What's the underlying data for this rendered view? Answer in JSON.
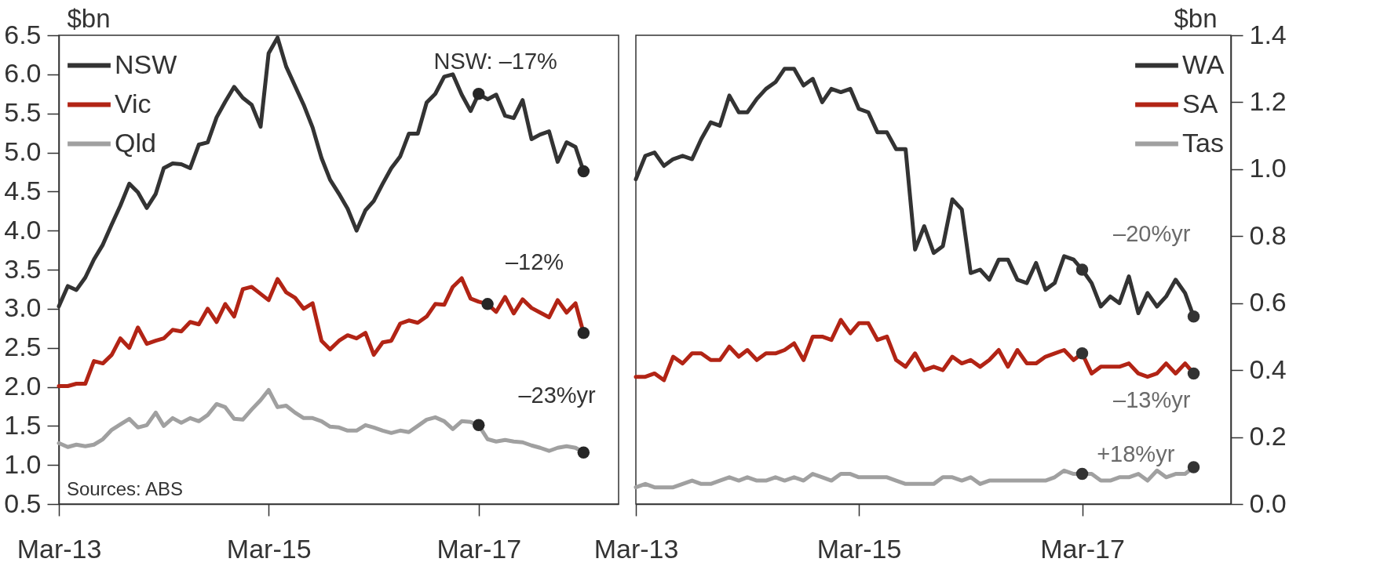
{
  "chart_data": [
    {
      "type": "line",
      "ylabel": "$bn",
      "legend": "top left",
      "grid": false,
      "marker": "none",
      "line_style": "solid",
      "x": [
        "2013-03",
        "2013-04",
        "2013-05",
        "2013-06",
        "2013-07",
        "2013-08",
        "2013-09",
        "2013-10",
        "2013-11",
        "2013-12",
        "2014-01",
        "2014-02",
        "2014-03",
        "2014-04",
        "2014-05",
        "2014-06",
        "2014-07",
        "2014-08",
        "2014-09",
        "2014-10",
        "2014-11",
        "2014-12",
        "2015-01",
        "2015-02",
        "2015-03",
        "2015-04",
        "2015-05",
        "2015-06",
        "2015-07",
        "2015-08",
        "2015-09",
        "2015-10",
        "2015-11",
        "2015-12",
        "2016-01",
        "2016-02",
        "2016-03",
        "2016-04",
        "2016-05",
        "2016-06",
        "2016-07",
        "2016-08",
        "2016-09",
        "2016-10",
        "2016-11",
        "2016-12",
        "2017-01",
        "2017-02",
        "2017-03",
        "2017-04",
        "2017-05",
        "2017-06",
        "2017-07",
        "2017-08",
        "2017-09",
        "2017-10",
        "2017-11",
        "2017-12",
        "2018-01",
        "2018-02",
        "2018-03"
      ],
      "series": [
        {
          "name": "NSW",
          "color": "#333333",
          "values": [
            3.03,
            3.29,
            3.24,
            3.4,
            3.63,
            3.82,
            4.08,
            4.32,
            4.6,
            4.49,
            4.29,
            4.47,
            4.8,
            4.86,
            4.85,
            4.8,
            5.1,
            5.13,
            5.45,
            5.65,
            5.84,
            5.7,
            5.61,
            5.33,
            6.27,
            6.47,
            6.1,
            5.85,
            5.61,
            5.32,
            4.93,
            4.65,
            4.47,
            4.28,
            4.0,
            4.26,
            4.38,
            4.6,
            4.8,
            4.95,
            5.24,
            5.24,
            5.64,
            5.75,
            5.97,
            6.0,
            5.74,
            5.53,
            5.75,
            5.68,
            5.74,
            5.47,
            5.44,
            5.67,
            5.17,
            5.23,
            5.27,
            4.88,
            5.13,
            5.07,
            4.76
          ]
        },
        {
          "name": "Vic",
          "color": "#b22415",
          "values": [
            2.01,
            2.01,
            2.04,
            2.04,
            2.33,
            2.3,
            2.41,
            2.62,
            2.5,
            2.76,
            2.55,
            2.59,
            2.62,
            2.73,
            2.71,
            2.83,
            2.8,
            3.0,
            2.83,
            3.06,
            2.9,
            3.25,
            3.28,
            3.19,
            3.11,
            3.38,
            3.21,
            3.14,
            3.0,
            3.07,
            2.59,
            2.48,
            2.59,
            2.66,
            2.62,
            2.69,
            2.41,
            2.57,
            2.59,
            2.81,
            2.85,
            2.82,
            2.9,
            3.06,
            3.05,
            3.28,
            3.39,
            3.13,
            3.09,
            3.06,
            2.96,
            3.15,
            2.94,
            3.12,
            3.01,
            2.95,
            2.89,
            3.11,
            2.95,
            3.07,
            2.69
          ]
        },
        {
          "name": "Qld",
          "color": "#a0a0a0",
          "values": [
            1.28,
            1.23,
            1.26,
            1.24,
            1.26,
            1.33,
            1.45,
            1.52,
            1.59,
            1.48,
            1.51,
            1.67,
            1.5,
            1.6,
            1.54,
            1.6,
            1.56,
            1.64,
            1.78,
            1.74,
            1.59,
            1.58,
            1.71,
            1.83,
            1.96,
            1.74,
            1.76,
            1.67,
            1.6,
            1.6,
            1.56,
            1.49,
            1.48,
            1.44,
            1.44,
            1.51,
            1.48,
            1.44,
            1.41,
            1.44,
            1.42,
            1.5,
            1.58,
            1.61,
            1.56,
            1.46,
            1.56,
            1.55,
            1.51,
            1.33,
            1.3,
            1.32,
            1.3,
            1.29,
            1.25,
            1.22,
            1.18,
            1.22,
            1.24,
            1.22,
            1.16
          ]
        },
        {
          "type": "scatter",
          "marker": "circle",
          "color": "#262626",
          "x": [
            "2017-03",
            "2018-03",
            "2017-04",
            "2018-03",
            "2017-03",
            "2018-03"
          ],
          "values": [
            5.75,
            4.76,
            3.06,
            2.69,
            1.51,
            1.16
          ]
        }
      ],
      "xlim": [
        "2013-03",
        "2018-07"
      ],
      "xticks": [
        {
          "value": "2013-03",
          "label": "Mar-13"
        },
        {
          "value": "2015-03",
          "label": "Mar-15"
        },
        {
          "value": "2017-03",
          "label": "Mar-17"
        }
      ],
      "ylim": [
        0.5,
        6.5
      ],
      "yticks": [
        0.5,
        {
          "value": 1,
          "label": "1.0"
        },
        1.5,
        {
          "value": 2,
          "label": "2.0"
        },
        2.5,
        {
          "value": 3,
          "label": "3.0"
        },
        3.5,
        {
          "value": 4,
          "label": "4.0"
        },
        4.5,
        {
          "value": 5,
          "label": "5.0"
        },
        5.5,
        {
          "value": 6,
          "label": "6.0"
        },
        6.5
      ],
      "annotations": [
        "NSW: –17%",
        "–12%",
        "–23%yr",
        "Sources: ABS"
      ]
    },
    {
      "type": "line",
      "y2label": "$bn",
      "legend": "top right",
      "grid": false,
      "marker": "none",
      "line_style": "solid",
      "x": [
        "2013-03",
        "2013-04",
        "2013-05",
        "2013-06",
        "2013-07",
        "2013-08",
        "2013-09",
        "2013-10",
        "2013-11",
        "2013-12",
        "2014-01",
        "2014-02",
        "2014-03",
        "2014-04",
        "2014-05",
        "2014-06",
        "2014-07",
        "2014-08",
        "2014-09",
        "2014-10",
        "2014-11",
        "2014-12",
        "2015-01",
        "2015-02",
        "2015-03",
        "2015-04",
        "2015-05",
        "2015-06",
        "2015-07",
        "2015-08",
        "2015-09",
        "2015-10",
        "2015-11",
        "2015-12",
        "2016-01",
        "2016-02",
        "2016-03",
        "2016-04",
        "2016-05",
        "2016-06",
        "2016-07",
        "2016-08",
        "2016-09",
        "2016-10",
        "2016-11",
        "2016-12",
        "2017-01",
        "2017-02",
        "2017-03",
        "2017-04",
        "2017-05",
        "2017-06",
        "2017-07",
        "2017-08",
        "2017-09",
        "2017-10",
        "2017-11",
        "2017-12",
        "2018-01",
        "2018-02",
        "2018-03"
      ],
      "series": [
        {
          "name": "WA",
          "color": "#333333",
          "axis": "y2",
          "values": [
            0.97,
            1.04,
            1.05,
            1.01,
            1.03,
            1.04,
            1.03,
            1.09,
            1.14,
            1.13,
            1.22,
            1.17,
            1.17,
            1.21,
            1.24,
            1.26,
            1.3,
            1.3,
            1.25,
            1.27,
            1.2,
            1.24,
            1.23,
            1.24,
            1.18,
            1.17,
            1.11,
            1.11,
            1.06,
            1.06,
            0.76,
            0.83,
            0.75,
            0.77,
            0.91,
            0.88,
            0.69,
            0.7,
            0.67,
            0.73,
            0.73,
            0.67,
            0.66,
            0.72,
            0.64,
            0.66,
            0.74,
            0.73,
            0.7,
            0.66,
            0.59,
            0.62,
            0.6,
            0.68,
            0.57,
            0.63,
            0.59,
            0.62,
            0.67,
            0.63,
            0.56
          ]
        },
        {
          "name": "SA",
          "color": "#b22415",
          "axis": "y2",
          "values": [
            0.38,
            0.38,
            0.39,
            0.37,
            0.44,
            0.42,
            0.45,
            0.45,
            0.43,
            0.43,
            0.47,
            0.44,
            0.46,
            0.43,
            0.45,
            0.45,
            0.46,
            0.48,
            0.43,
            0.5,
            0.5,
            0.49,
            0.55,
            0.51,
            0.54,
            0.54,
            0.49,
            0.5,
            0.43,
            0.41,
            0.45,
            0.4,
            0.41,
            0.4,
            0.44,
            0.42,
            0.43,
            0.41,
            0.43,
            0.46,
            0.41,
            0.46,
            0.42,
            0.42,
            0.44,
            0.45,
            0.46,
            0.43,
            0.45,
            0.39,
            0.41,
            0.41,
            0.41,
            0.42,
            0.39,
            0.38,
            0.39,
            0.42,
            0.39,
            0.42,
            0.39
          ]
        },
        {
          "name": "Tas",
          "color": "#a0a0a0",
          "axis": "y2",
          "values": [
            0.05,
            0.06,
            0.05,
            0.05,
            0.05,
            0.06,
            0.07,
            0.06,
            0.06,
            0.07,
            0.08,
            0.07,
            0.08,
            0.07,
            0.07,
            0.08,
            0.07,
            0.08,
            0.07,
            0.09,
            0.08,
            0.07,
            0.09,
            0.09,
            0.08,
            0.08,
            0.08,
            0.08,
            0.07,
            0.06,
            0.06,
            0.06,
            0.06,
            0.08,
            0.08,
            0.07,
            0.08,
            0.06,
            0.07,
            0.07,
            0.07,
            0.07,
            0.07,
            0.07,
            0.07,
            0.08,
            0.1,
            0.09,
            0.09,
            0.09,
            0.07,
            0.07,
            0.08,
            0.08,
            0.09,
            0.07,
            0.1,
            0.08,
            0.09,
            0.09,
            0.11
          ]
        },
        {
          "type": "scatter",
          "marker": "circle",
          "color": "#333333",
          "axis": "y2",
          "x": [
            "2017-03",
            "2018-03",
            "2017-03",
            "2018-03",
            "2017-03",
            "2018-03"
          ],
          "values": [
            0.7,
            0.56,
            0.45,
            0.39,
            0.09,
            0.11
          ]
        }
      ],
      "xlim": [
        "2013-03",
        "2018-07"
      ],
      "xticks": [
        {
          "value": "2013-03",
          "label": "Mar-13"
        },
        {
          "value": "2015-03",
          "label": "Mar-15"
        },
        {
          "value": "2017-03",
          "label": "Mar-17"
        }
      ],
      "y2lim": [
        0,
        1.4
      ],
      "y2ticks": [
        {
          "value": 0,
          "label": "0.0"
        },
        0.2,
        0.4,
        0.6,
        0.8,
        {
          "value": 1,
          "label": "1.0"
        },
        1.2,
        1.4
      ],
      "annotations": [
        "–20%yr",
        "–13%yr",
        "+18%yr"
      ]
    }
  ]
}
